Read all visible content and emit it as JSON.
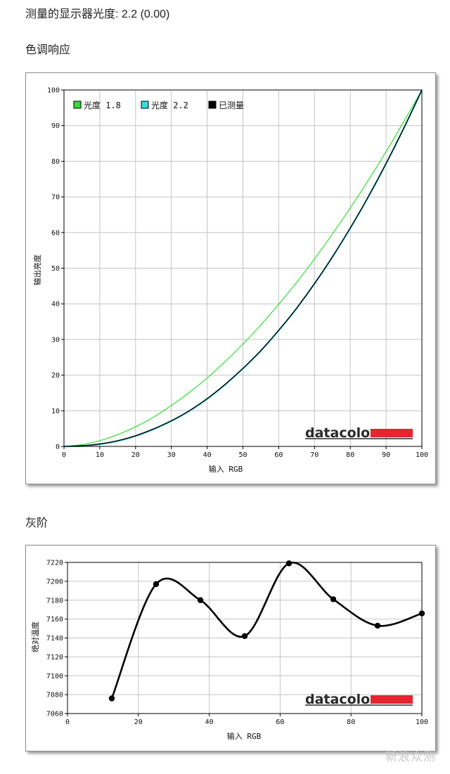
{
  "header": {
    "gamma_text": "测量的显示器光度: 2.2 (0.00)",
    "tone_title": "色调响应",
    "gray_title": "灰阶"
  },
  "watermark": "新浪众测",
  "chart_data": [
    {
      "type": "line",
      "title": "",
      "xlabel": "输入 RGB",
      "ylabel": "输出亮度",
      "xlim": [
        0,
        100
      ],
      "ylim": [
        0,
        100
      ],
      "xticks": [
        0,
        10,
        20,
        30,
        40,
        50,
        60,
        70,
        80,
        90,
        100
      ],
      "yticks": [
        0,
        10,
        20,
        30,
        40,
        50,
        60,
        70,
        80,
        90,
        100
      ],
      "grid": true,
      "legend_position": "top-left",
      "logo": "datacolor",
      "series": [
        {
          "name": "光度 1.8",
          "color": "#33dd33",
          "x": [
            0,
            5,
            10,
            15,
            20,
            25,
            30,
            35,
            40,
            45,
            50,
            55,
            60,
            65,
            70,
            75,
            80,
            85,
            90,
            95,
            100
          ],
          "y": [
            0,
            0.5,
            1.6,
            3.3,
            5.5,
            8.2,
            11.5,
            15.1,
            19.2,
            23.8,
            28.7,
            34.1,
            39.9,
            46.0,
            52.6,
            59.6,
            66.9,
            74.6,
            82.7,
            91.2,
            100
          ]
        },
        {
          "name": "光度 2.2",
          "color": "#33dddd",
          "x": [
            0,
            5,
            10,
            15,
            20,
            25,
            30,
            35,
            40,
            45,
            50,
            55,
            60,
            65,
            70,
            75,
            80,
            85,
            90,
            95,
            100
          ],
          "y": [
            0,
            0.1,
            0.6,
            1.5,
            2.9,
            4.8,
            7.1,
            9.9,
            13.3,
            17.3,
            21.8,
            26.8,
            32.5,
            38.7,
            45.6,
            53.1,
            61.2,
            69.9,
            79.3,
            89.3,
            100
          ]
        },
        {
          "name": "已测量",
          "color": "#000000",
          "x": [
            0,
            5,
            10,
            15,
            20,
            25,
            30,
            35,
            40,
            45,
            50,
            55,
            60,
            65,
            70,
            75,
            80,
            85,
            90,
            95,
            100
          ],
          "y": [
            0,
            0.2,
            0.7,
            1.6,
            3.0,
            4.9,
            7.2,
            10.0,
            13.4,
            17.4,
            21.9,
            26.9,
            32.6,
            38.8,
            45.7,
            53.2,
            61.3,
            70.0,
            79.4,
            89.4,
            100
          ]
        }
      ]
    },
    {
      "type": "line",
      "title": "",
      "xlabel": "输入 RGB",
      "ylabel": "绝对温度",
      "xlim": [
        0,
        100
      ],
      "ylim": [
        7060,
        7220
      ],
      "xticks": [
        0,
        20,
        40,
        60,
        80,
        100
      ],
      "yticks": [
        7060,
        7080,
        7100,
        7120,
        7140,
        7160,
        7180,
        7200,
        7220
      ],
      "grid": true,
      "logo": "datacolor",
      "series": [
        {
          "name": "",
          "color": "#000000",
          "x": [
            12.5,
            25,
            37.5,
            50,
            62.5,
            75,
            87.5,
            100
          ],
          "y": [
            7076,
            7197,
            7180,
            7142,
            7219,
            7181,
            7153,
            7166
          ]
        }
      ]
    }
  ]
}
